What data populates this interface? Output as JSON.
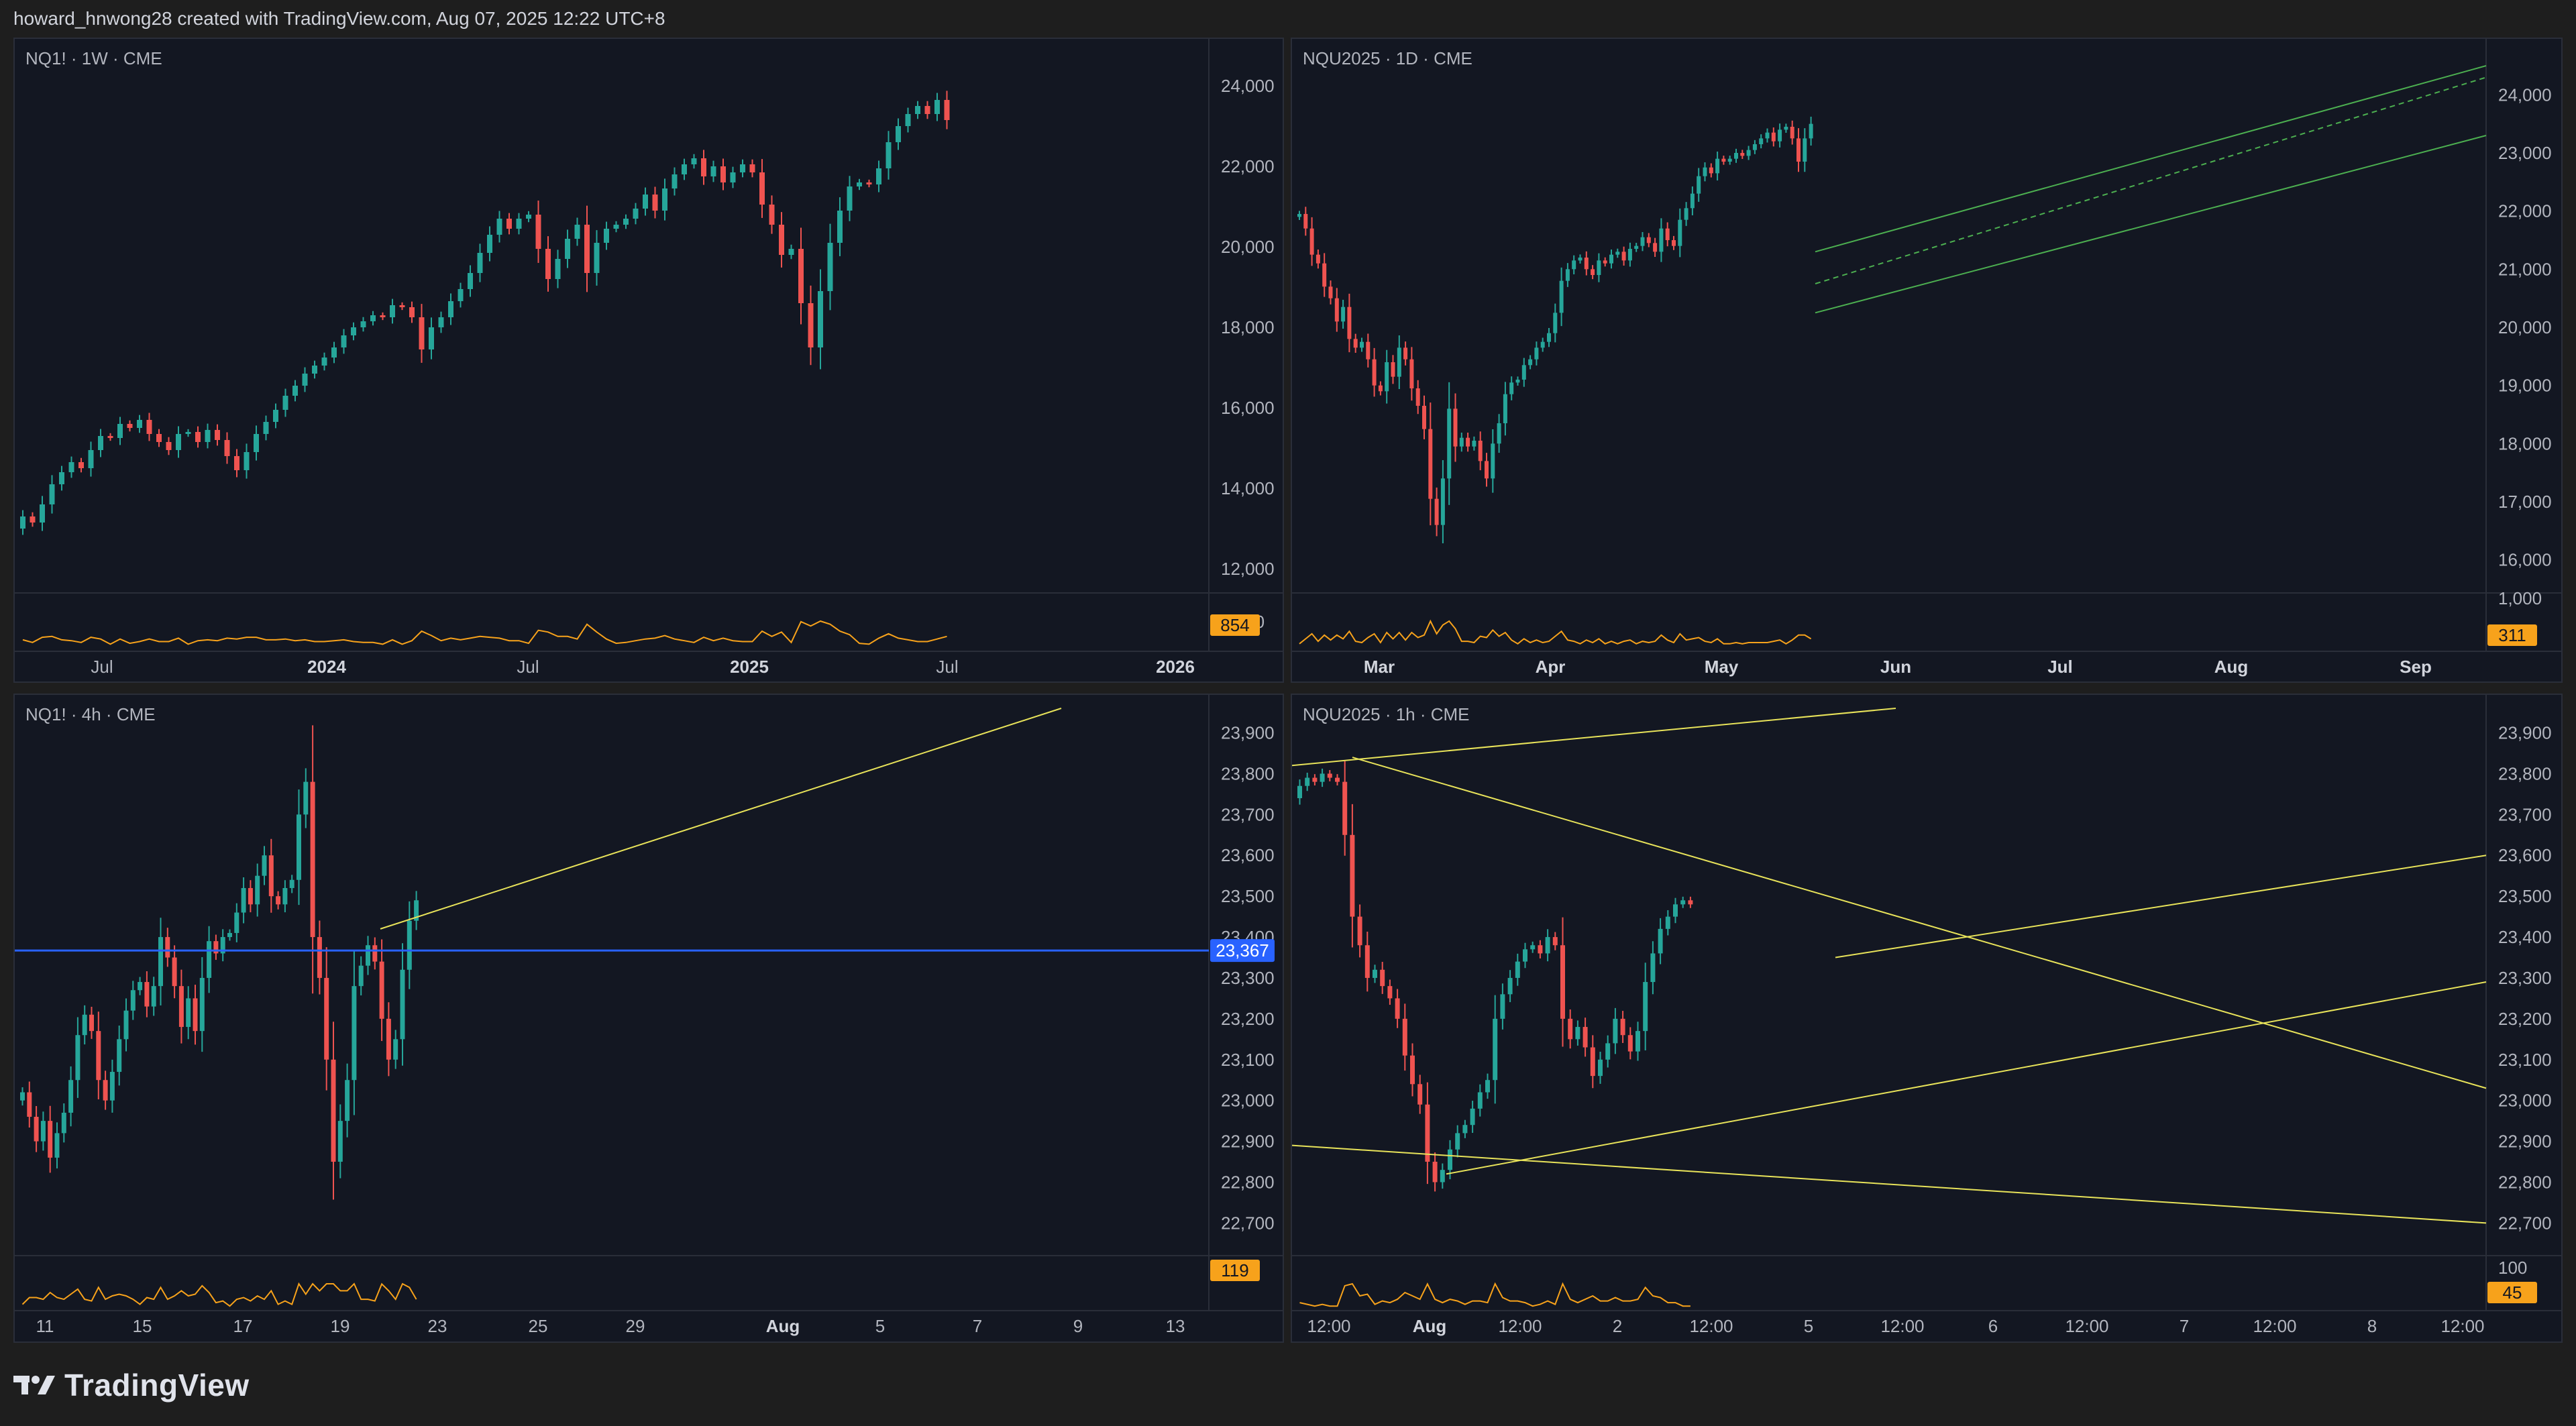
{
  "header": {
    "text": "howard_hnwong28 created with TradingView.com, Aug 07, 2025 12:22 UTC+8"
  },
  "footer": {
    "brand": "TradingView"
  },
  "colors": {
    "up": "#26a69a",
    "down": "#ef5350",
    "volume_line": "#f7a21b",
    "trendline": "#e8e35a",
    "channel": "#4caf50",
    "hline": "#2962ff",
    "badge_orange": "#f7a21b",
    "badge_blue": "#2962ff"
  },
  "panels": [
    {
      "id": "p1",
      "symbol": "NQ1! · 1W · CME",
      "price_labels": [
        "24,000",
        "22,000",
        "20,000",
        "18,000",
        "16,000",
        "14,000",
        "12,000"
      ],
      "volume_label": "1,000",
      "volume_badge": "854",
      "time_labels": [
        {
          "text": "Jul",
          "bold": false
        },
        {
          "text": "2024",
          "bold": true
        },
        {
          "text": "Jul",
          "bold": false
        },
        {
          "text": "2025",
          "bold": true
        },
        {
          "text": "Jul",
          "bold": false
        },
        {
          "text": "2026",
          "bold": true
        }
      ]
    },
    {
      "id": "p2",
      "symbol": "NQU2025 · 1D · CME",
      "price_labels": [
        "24,000",
        "23,000",
        "22,000",
        "21,000",
        "20,000",
        "19,000",
        "18,000",
        "17,000",
        "16,000"
      ],
      "volume_label": "1,000",
      "volume_badge": "311",
      "time_labels": [
        {
          "text": "Mar",
          "bold": true
        },
        {
          "text": "Apr",
          "bold": true
        },
        {
          "text": "May",
          "bold": true
        },
        {
          "text": "Jun",
          "bold": true
        },
        {
          "text": "Jul",
          "bold": true
        },
        {
          "text": "Aug",
          "bold": true
        },
        {
          "text": "Sep",
          "bold": true
        }
      ]
    },
    {
      "id": "p3",
      "symbol": "NQ1! · 4h · CME",
      "price_labels": [
        "23,900",
        "23,800",
        "23,700",
        "23,600",
        "23,500",
        "23,400",
        "23,300",
        "23,200",
        "23,100",
        "23,000",
        "22,900",
        "22,800",
        "22,700"
      ],
      "price_badge": "23,367",
      "volume_label": "100",
      "volume_badge": "119",
      "time_labels": [
        {
          "text": "11",
          "bold": false
        },
        {
          "text": "15",
          "bold": false
        },
        {
          "text": "17",
          "bold": false
        },
        {
          "text": "19",
          "bold": false
        },
        {
          "text": "23",
          "bold": false
        },
        {
          "text": "25",
          "bold": false
        },
        {
          "text": "29",
          "bold": false
        },
        {
          "text": "Aug",
          "bold": true
        },
        {
          "text": "5",
          "bold": false
        },
        {
          "text": "7",
          "bold": false
        },
        {
          "text": "9",
          "bold": false
        },
        {
          "text": "13",
          "bold": false
        }
      ]
    },
    {
      "id": "p4",
      "symbol": "NQU2025 · 1h · CME",
      "price_labels": [
        "23,900",
        "23,800",
        "23,700",
        "23,600",
        "23,500",
        "23,400",
        "23,300",
        "23,200",
        "23,100",
        "23,000",
        "22,900",
        "22,800",
        "22,700"
      ],
      "volume_label": "100",
      "volume_badge": "45",
      "time_labels": [
        {
          "text": "12:00",
          "bold": false
        },
        {
          "text": "Aug",
          "bold": true
        },
        {
          "text": "12:00",
          "bold": false
        },
        {
          "text": "2",
          "bold": false
        },
        {
          "text": "12:00",
          "bold": false
        },
        {
          "text": "5",
          "bold": false
        },
        {
          "text": "12:00",
          "bold": false
        },
        {
          "text": "6",
          "bold": false
        },
        {
          "text": "12:00",
          "bold": false
        },
        {
          "text": "7",
          "bold": false
        },
        {
          "text": "12:00",
          "bold": false
        },
        {
          "text": "8",
          "bold": false
        },
        {
          "text": "12:00",
          "bold": false
        }
      ]
    }
  ],
  "series": {
    "p1": [
      [
        13000,
        13300
      ],
      [
        13300,
        13150
      ],
      [
        13150,
        13600
      ],
      [
        13600,
        14100
      ],
      [
        14100,
        14400
      ],
      [
        14400,
        14650
      ],
      [
        14650,
        14500
      ],
      [
        14500,
        14950
      ],
      [
        14950,
        15300
      ],
      [
        15300,
        15250
      ],
      [
        15250,
        15600
      ],
      [
        15600,
        15500
      ],
      [
        15500,
        15700
      ],
      [
        15700,
        15350
      ],
      [
        15350,
        15150
      ],
      [
        15150,
        14950
      ],
      [
        14950,
        15350
      ],
      [
        15350,
        15400
      ],
      [
        15400,
        15150
      ],
      [
        15150,
        15450
      ],
      [
        15450,
        15200
      ],
      [
        15200,
        14800
      ],
      [
        14800,
        14450
      ],
      [
        14450,
        14900
      ],
      [
        14900,
        15350
      ],
      [
        15350,
        15650
      ],
      [
        15650,
        15950
      ],
      [
        15950,
        16300
      ],
      [
        16300,
        16550
      ],
      [
        16550,
        16850
      ],
      [
        16850,
        17050
      ],
      [
        17050,
        17250
      ],
      [
        17250,
        17500
      ],
      [
        17500,
        17800
      ],
      [
        17800,
        18000
      ],
      [
        18000,
        18150
      ],
      [
        18150,
        18300
      ],
      [
        18300,
        18250
      ],
      [
        18250,
        18550
      ],
      [
        18550,
        18500
      ],
      [
        18500,
        18250
      ],
      [
        18250,
        17450
      ],
      [
        17450,
        18000
      ],
      [
        18000,
        18250
      ],
      [
        18250,
        18650
      ],
      [
        18650,
        18950
      ],
      [
        18950,
        19350
      ],
      [
        19350,
        19850
      ],
      [
        19850,
        20300
      ],
      [
        20300,
        20700
      ],
      [
        20700,
        20450
      ],
      [
        20450,
        20700
      ],
      [
        20700,
        20800
      ],
      [
        20800,
        19950
      ],
      [
        19950,
        19200
      ],
      [
        19200,
        19700
      ],
      [
        19700,
        20200
      ],
      [
        20200,
        20550
      ],
      [
        20550,
        19350
      ],
      [
        19350,
        20100
      ],
      [
        20100,
        20450
      ],
      [
        20450,
        20550
      ],
      [
        20550,
        20700
      ],
      [
        20700,
        20950
      ],
      [
        20950,
        21300
      ],
      [
        21300,
        20900
      ],
      [
        20900,
        21450
      ],
      [
        21450,
        21800
      ],
      [
        21800,
        22050
      ],
      [
        22050,
        22200
      ],
      [
        22200,
        21750
      ],
      [
        21750,
        22000
      ],
      [
        22000,
        21600
      ],
      [
        21600,
        21850
      ],
      [
        21850,
        22050
      ],
      [
        22050,
        21850
      ],
      [
        21850,
        21050
      ],
      [
        21050,
        20550
      ],
      [
        20550,
        19800
      ],
      [
        19800,
        19950
      ],
      [
        19950,
        18600
      ],
      [
        18600,
        17500
      ],
      [
        17500,
        18900
      ],
      [
        18900,
        20100
      ],
      [
        20100,
        20900
      ],
      [
        20900,
        21500
      ],
      [
        21500,
        21600
      ],
      [
        21600,
        21550
      ],
      [
        21550,
        21950
      ],
      [
        21950,
        22600
      ],
      [
        22600,
        23000
      ],
      [
        23000,
        23300
      ],
      [
        23300,
        23500
      ],
      [
        23500,
        23300
      ],
      [
        23300,
        23650
      ],
      [
        23650,
        23150
      ]
    ],
    "p2": [
      [
        21900,
        21950
      ],
      [
        21950,
        21700
      ],
      [
        21700,
        21250
      ],
      [
        21250,
        21100
      ],
      [
        21100,
        20700
      ],
      [
        20700,
        20500
      ],
      [
        20500,
        20100
      ],
      [
        20100,
        20350
      ],
      [
        20350,
        19800
      ],
      [
        19800,
        19650
      ],
      [
        19650,
        19750
      ],
      [
        19750,
        19450
      ],
      [
        19450,
        19000
      ],
      [
        19000,
        18900
      ],
      [
        18900,
        19400
      ],
      [
        19400,
        19150
      ],
      [
        19150,
        19650
      ],
      [
        19650,
        19450
      ],
      [
        19450,
        18950
      ],
      [
        18950,
        18650
      ],
      [
        18650,
        18250
      ],
      [
        18250,
        17050
      ],
      [
        17050,
        16600
      ],
      [
        16600,
        17400
      ],
      [
        17400,
        18600
      ],
      [
        18600,
        17950
      ],
      [
        17950,
        18100
      ],
      [
        18100,
        17950
      ],
      [
        17950,
        18050
      ],
      [
        18050,
        17700
      ],
      [
        17700,
        17400
      ],
      [
        17400,
        18000
      ],
      [
        18000,
        18350
      ],
      [
        18350,
        18850
      ],
      [
        18850,
        19050
      ],
      [
        19050,
        19100
      ],
      [
        19100,
        19350
      ],
      [
        19350,
        19450
      ],
      [
        19450,
        19650
      ],
      [
        19650,
        19750
      ],
      [
        19750,
        19900
      ],
      [
        19900,
        20250
      ],
      [
        20250,
        20800
      ],
      [
        20800,
        21000
      ],
      [
        21000,
        21150
      ],
      [
        21150,
        21200
      ],
      [
        21200,
        21000
      ],
      [
        21000,
        20900
      ],
      [
        20900,
        21150
      ],
      [
        21150,
        21100
      ],
      [
        21100,
        21250
      ],
      [
        21250,
        21300
      ],
      [
        21300,
        21150
      ],
      [
        21150,
        21350
      ],
      [
        21350,
        21400
      ],
      [
        21400,
        21550
      ],
      [
        21550,
        21450
      ],
      [
        21450,
        21300
      ],
      [
        21300,
        21700
      ],
      [
        21700,
        21500
      ],
      [
        21500,
        21400
      ],
      [
        21400,
        21850
      ],
      [
        21850,
        22050
      ],
      [
        22050,
        22300
      ],
      [
        22300,
        22600
      ],
      [
        22600,
        22750
      ],
      [
        22750,
        22650
      ],
      [
        22650,
        22900
      ],
      [
        22900,
        22850
      ],
      [
        22850,
        22900
      ],
      [
        22900,
        23000
      ],
      [
        23000,
        22950
      ],
      [
        22950,
        23050
      ],
      [
        23050,
        23150
      ],
      [
        23150,
        23250
      ],
      [
        23250,
        23350
      ],
      [
        23350,
        23200
      ],
      [
        23200,
        23400
      ],
      [
        23400,
        23450
      ],
      [
        23450,
        23250
      ],
      [
        23250,
        22850
      ],
      [
        22850,
        23250
      ],
      [
        23250,
        23500
      ]
    ],
    "p3": [
      [
        23000,
        23020
      ],
      [
        23020,
        22960
      ],
      [
        22960,
        22900
      ],
      [
        22900,
        22950
      ],
      [
        22950,
        22860
      ],
      [
        22860,
        22920
      ],
      [
        22920,
        22970
      ],
      [
        22970,
        23050
      ],
      [
        23050,
        23160
      ],
      [
        23160,
        23210
      ],
      [
        23210,
        23170
      ],
      [
        23170,
        23050
      ],
      [
        23050,
        23000
      ],
      [
        23000,
        23070
      ],
      [
        23070,
        23150
      ],
      [
        23150,
        23220
      ],
      [
        23220,
        23270
      ],
      [
        23270,
        23290
      ],
      [
        23290,
        23230
      ],
      [
        23230,
        23280
      ],
      [
        23280,
        23400
      ],
      [
        23400,
        23350
      ],
      [
        23350,
        23280
      ],
      [
        23280,
        23180
      ],
      [
        23180,
        23250
      ],
      [
        23250,
        23170
      ],
      [
        23170,
        23300
      ],
      [
        23300,
        23390
      ],
      [
        23390,
        23360
      ],
      [
        23360,
        23400
      ],
      [
        23400,
        23410
      ],
      [
        23410,
        23460
      ],
      [
        23460,
        23520
      ],
      [
        23520,
        23480
      ],
      [
        23480,
        23550
      ],
      [
        23550,
        23600
      ],
      [
        23600,
        23500
      ],
      [
        23500,
        23480
      ],
      [
        23480,
        23520
      ],
      [
        23520,
        23540
      ],
      [
        23540,
        23700
      ],
      [
        23700,
        23780
      ],
      [
        23780,
        23400
      ],
      [
        23400,
        23300
      ],
      [
        23300,
        23100
      ],
      [
        23100,
        22850
      ],
      [
        22850,
        22950
      ],
      [
        22950,
        23050
      ],
      [
        23050,
        23280
      ],
      [
        23280,
        23330
      ],
      [
        23330,
        23380
      ],
      [
        23380,
        23340
      ],
      [
        23340,
        23200
      ],
      [
        23200,
        23100
      ],
      [
        23100,
        23150
      ],
      [
        23150,
        23320
      ],
      [
        23320,
        23440
      ],
      [
        23440,
        23490
      ]
    ],
    "p4": [
      [
        23740,
        23770
      ],
      [
        23770,
        23790
      ],
      [
        23790,
        23780
      ],
      [
        23780,
        23800
      ],
      [
        23800,
        23790
      ],
      [
        23790,
        23780
      ],
      [
        23780,
        23650
      ],
      [
        23650,
        23450
      ],
      [
        23450,
        23380
      ],
      [
        23380,
        23300
      ],
      [
        23300,
        23320
      ],
      [
        23320,
        23280
      ],
      [
        23280,
        23250
      ],
      [
        23250,
        23200
      ],
      [
        23200,
        23110
      ],
      [
        23110,
        23040
      ],
      [
        23040,
        22990
      ],
      [
        22990,
        22850
      ],
      [
        22850,
        22800
      ],
      [
        22800,
        22830
      ],
      [
        22830,
        22880
      ],
      [
        22880,
        22920
      ],
      [
        22920,
        22940
      ],
      [
        22940,
        22980
      ],
      [
        22980,
        23020
      ],
      [
        23020,
        23050
      ],
      [
        23050,
        23200
      ],
      [
        23200,
        23260
      ],
      [
        23260,
        23300
      ],
      [
        23300,
        23340
      ],
      [
        23340,
        23370
      ],
      [
        23370,
        23380
      ],
      [
        23380,
        23360
      ],
      [
        23360,
        23400
      ],
      [
        23400,
        23380
      ],
      [
        23380,
        23200
      ],
      [
        23200,
        23150
      ],
      [
        23150,
        23180
      ],
      [
        23180,
        23130
      ],
      [
        23130,
        23060
      ],
      [
        23060,
        23100
      ],
      [
        23100,
        23140
      ],
      [
        23140,
        23200
      ],
      [
        23200,
        23160
      ],
      [
        23160,
        23120
      ],
      [
        23120,
        23170
      ],
      [
        23170,
        23290
      ],
      [
        23290,
        23360
      ],
      [
        23360,
        23420
      ],
      [
        23420,
        23450
      ],
      [
        23450,
        23480
      ],
      [
        23480,
        23490
      ],
      [
        23490,
        23480
      ]
    ]
  }
}
